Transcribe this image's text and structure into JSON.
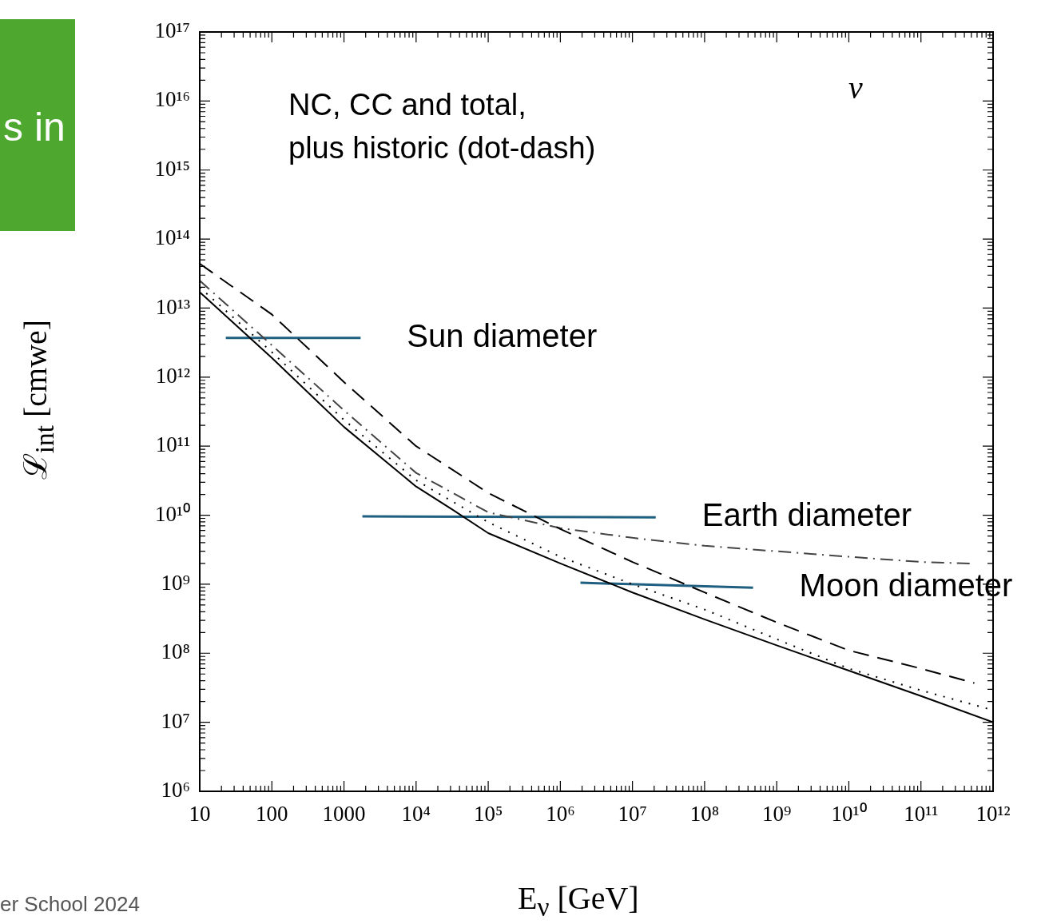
{
  "chart_data": {
    "type": "line",
    "xlabel": "E$_{ν}$ [GeV]",
    "ylabel": "ℒ$_{int}$ [cmwe]",
    "log": "xy",
    "grid": false,
    "legend": false,
    "marker": "none",
    "xlim": [
      10,
      1000000000000.0
    ],
    "ylim": [
      1000000.0,
      1e+17
    ],
    "xticks": [
      10,
      100,
      1000,
      {
        "value": 10000.0,
        "label": "10⁴"
      },
      {
        "value": 100000.0,
        "label": "10⁵"
      },
      {
        "value": 1000000.0,
        "label": "10⁶"
      },
      {
        "value": 10000000.0,
        "label": "10⁷"
      },
      {
        "value": 100000000.0,
        "label": "10⁸"
      },
      {
        "value": 1000000000.0,
        "label": "10⁹"
      },
      {
        "value": 10000000000.0,
        "label": "10¹⁰"
      },
      {
        "value": 100000000000.0,
        "label": "10¹¹"
      },
      {
        "value": 1000000000000.0,
        "label": "10¹²"
      }
    ],
    "yticks": [
      {
        "value": 1000000.0,
        "label": "10⁶"
      },
      {
        "value": 10000000.0,
        "label": "10⁷"
      },
      {
        "value": 100000000.0,
        "label": "10⁸"
      },
      {
        "value": 1000000000.0,
        "label": "10⁹"
      },
      {
        "value": 10000000000.0,
        "label": "10¹⁰"
      },
      {
        "value": 100000000000.0,
        "label": "10¹¹"
      },
      {
        "value": 1000000000000.0,
        "label": "10¹²"
      },
      {
        "value": 10000000000000.0,
        "label": "10¹³"
      },
      {
        "value": 100000000000000.0,
        "label": "10¹⁴"
      },
      {
        "value": 1000000000000000.0,
        "label": "10¹⁵"
      },
      {
        "value": 1e+16,
        "label": "10¹⁶"
      },
      {
        "value": 1e+17,
        "label": "10¹⁷"
      }
    ],
    "series": [
      {
        "color": "#000000",
        "line_style": "solid",
        "x": [
          10,
          100,
          1000,
          10000.0,
          32000.0,
          100000.0,
          1000000.0,
          10000000.0,
          100000000.0,
          1000000000.0,
          10000000000.0,
          100000000000.0,
          1000000000000.0
        ],
        "values": [
          17000000000000.0,
          1900000000000.0,
          190000000000.0,
          26000000000.0,
          12000000000.0,
          5500000000.0,
          2000000000.0,
          760000000.0,
          310000000.0,
          130000000.0,
          56000000.0,
          24000000.0,
          10000000.0
        ]
      },
      {
        "color": "#000000",
        "line_style": "dashed",
        "x": [
          10,
          100,
          1000,
          10000.0,
          100000.0,
          1000000.0,
          10000000.0,
          100000000.0,
          1000000000.0,
          10000000000.0,
          100000000000.0,
          550000000000.0
        ],
        "values": [
          44000000000000.0,
          8100000000000.0,
          850000000000.0,
          100000000000.0,
          21000000000.0,
          6300000000.0,
          2100000000.0,
          760000000.0,
          280000000.0,
          110000000.0,
          60000000.0,
          37000000.0
        ]
      },
      {
        "color": "#000000",
        "line_style": "dotted",
        "x": [
          10,
          100,
          1000,
          10000.0,
          100000.0,
          1000000.0,
          10000000.0,
          100000000.0,
          1000000000.0,
          10000000000.0,
          100000000000.0,
          1000000000000.0
        ],
        "values": [
          20000000000000.0,
          2300000000000.0,
          240000000000.0,
          32000000000.0,
          7900000000.0,
          2500000000.0,
          1000000000.0,
          430000000.0,
          160000000.0,
          60000000.0,
          29000000.0,
          15000000.0
        ]
      },
      {
        "color": "#444444",
        "line_style": "dashdot",
        "x": [
          10,
          100,
          1000,
          10000.0,
          100000.0,
          1000000.0,
          10000000.0,
          100000000.0,
          1000000000.0,
          10000000000.0,
          100000000000.0,
          480000000000.0
        ],
        "values": [
          25000000000000.0,
          2900000000000.0,
          330000000000.0,
          41000000000.0,
          11000000000.0,
          6500000000.0,
          4700000000.0,
          3600000000.0,
          3000000000.0,
          2500000000.0,
          2100000000.0,
          2000000000.0
        ]
      },
      {
        "name": "Sun diameter",
        "color": "#1f5f80",
        "line_style": "solid",
        "x": [
          23,
          1700
        ],
        "values": [
          3700000000000.0,
          3700000000000.0
        ]
      },
      {
        "name": "Earth diameter",
        "color": "#1f5f80",
        "line_style": "solid",
        "x": [
          1800,
          21000000.0
        ],
        "values": [
          9600000000.0,
          9300000000.0
        ]
      },
      {
        "name": "Moon diameter",
        "color": "#1f5f80",
        "line_style": "solid",
        "x": [
          1900000.0,
          470000000.0
        ],
        "values": [
          1050000000.0,
          890000000.0
        ]
      }
    ],
    "annotations": [
      "ν",
      "NC, CC and total,\nplus historic (dot-dash)",
      "s in",
      "er School 2024"
    ]
  }
}
